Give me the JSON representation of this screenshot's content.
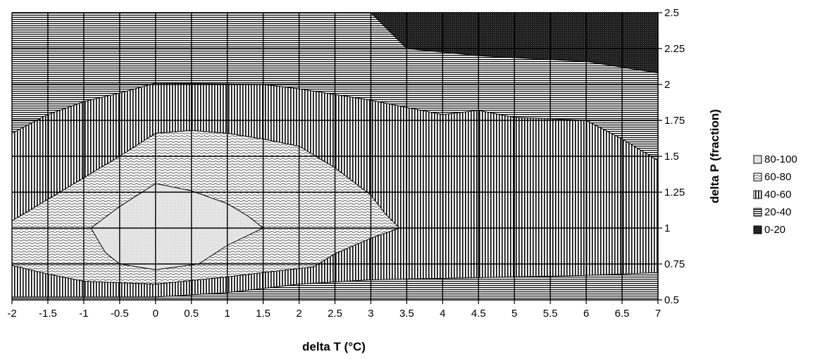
{
  "chart_data": {
    "type": "area",
    "chart_subtype": "contour",
    "xlabel": "delta T (°C)",
    "ylabel": "delta P (fraction)",
    "xlim": [
      -2,
      7
    ],
    "ylim": [
      0.5,
      2.5
    ],
    "x_ticks": [
      "-2",
      "-1.5",
      "-1",
      "-0.5",
      "0",
      "0.5",
      "1",
      "1.5",
      "2",
      "2.5",
      "3",
      "3.5",
      "4",
      "4.5",
      "5",
      "5.5",
      "6",
      "6.5",
      "7"
    ],
    "y_ticks": [
      "0.5",
      "0.75",
      "1",
      "1.25",
      "1.5",
      "1.75",
      "2",
      "2.25",
      "2.5"
    ],
    "grid": true,
    "legend_position": "right",
    "legend": [
      "80-100",
      "60-80",
      "40-60",
      "20-40",
      "0-20"
    ],
    "series": [
      {
        "name": "20-40",
        "pattern": "horizontal-lines",
        "fill": "full-plot"
      },
      {
        "name": "0-20",
        "pattern": "dense-dark",
        "polygon": [
          [
            3.0,
            2.5
          ],
          [
            7.0,
            2.5
          ],
          [
            7.0,
            2.08
          ],
          [
            6.0,
            2.16
          ],
          [
            4.5,
            2.2
          ],
          [
            3.5,
            2.25
          ]
        ]
      },
      {
        "name": "40-60",
        "pattern": "vertical-lines",
        "polygon": [
          [
            -2.0,
            1.66
          ],
          [
            -1.5,
            1.79
          ],
          [
            -1.0,
            1.88
          ],
          [
            -0.5,
            1.94
          ],
          [
            0.0,
            2.01
          ],
          [
            1.5,
            2.0
          ],
          [
            2.0,
            1.97
          ],
          [
            3.0,
            1.89
          ],
          [
            4.0,
            1.79
          ],
          [
            4.5,
            1.82
          ],
          [
            5.0,
            1.77
          ],
          [
            6.0,
            1.75
          ],
          [
            6.5,
            1.62
          ],
          [
            7.0,
            1.47
          ],
          [
            7.0,
            0.69
          ],
          [
            6.5,
            0.68
          ],
          [
            6.0,
            0.67
          ],
          [
            5.0,
            0.66
          ],
          [
            4.0,
            0.65
          ],
          [
            3.0,
            0.64
          ],
          [
            2.0,
            0.61
          ],
          [
            1.5,
            0.58
          ],
          [
            1.0,
            0.55
          ],
          [
            0.0,
            0.52
          ],
          [
            -1.0,
            0.52
          ],
          [
            -2.0,
            0.52
          ]
        ]
      },
      {
        "name": "60-80",
        "pattern": "wavy-lines",
        "polygon": [
          [
            -2.0,
            1.05
          ],
          [
            -1.5,
            1.2
          ],
          [
            -1.0,
            1.35
          ],
          [
            -0.5,
            1.5
          ],
          [
            0.0,
            1.66
          ],
          [
            0.5,
            1.68
          ],
          [
            1.0,
            1.66
          ],
          [
            1.5,
            1.62
          ],
          [
            2.0,
            1.57
          ],
          [
            2.5,
            1.42
          ],
          [
            3.0,
            1.23
          ],
          [
            3.2,
            1.1
          ],
          [
            3.4,
            1.0
          ],
          [
            3.0,
            0.93
          ],
          [
            2.5,
            0.82
          ],
          [
            2.2,
            0.73
          ],
          [
            1.5,
            0.69
          ],
          [
            1.0,
            0.66
          ],
          [
            0.0,
            0.61
          ],
          [
            -1.0,
            0.63
          ],
          [
            -1.5,
            0.68
          ],
          [
            -2.0,
            0.74
          ]
        ]
      },
      {
        "name": "80-100",
        "pattern": "light-gray",
        "polygon": [
          [
            -0.9,
            1.0
          ],
          [
            -0.5,
            1.15
          ],
          [
            0.0,
            1.31
          ],
          [
            0.5,
            1.26
          ],
          [
            1.0,
            1.17
          ],
          [
            1.3,
            1.08
          ],
          [
            1.5,
            1.0
          ],
          [
            1.0,
            0.88
          ],
          [
            0.6,
            0.75
          ],
          [
            0.0,
            0.71
          ],
          [
            -0.5,
            0.75
          ],
          [
            -0.7,
            0.83
          ]
        ]
      }
    ]
  }
}
